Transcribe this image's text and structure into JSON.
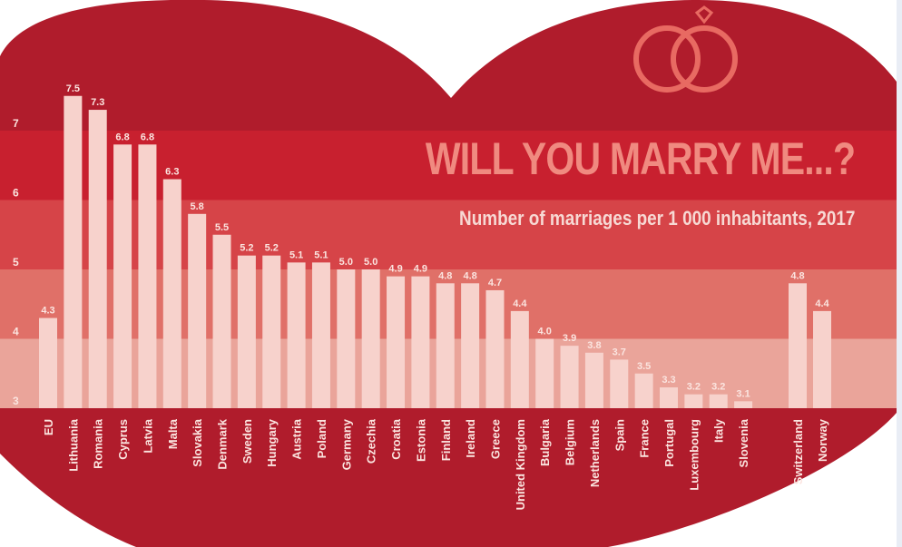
{
  "colors": {
    "heart": "#b01c2c",
    "band_top": "#c8202f",
    "band_mid": "#d64448",
    "band_low": "#e07068",
    "band_bottom": "#eaa49a",
    "bar": "#f7d2cc",
    "label": "#fbe4df",
    "title": "#f08a80",
    "rings": "#e86a62"
  },
  "chart_data": {
    "type": "bar",
    "title": "WILL YOU MARRY ME...?",
    "subtitle": "Number of marriages per 1 000 inhabitants, 2017",
    "categories": [
      "EU",
      "Lithuania",
      "Romania",
      "Cyprus",
      "Latvia",
      "Malta",
      "Slovakia",
      "Denmark",
      "Sweden",
      "Hungary",
      "Austria",
      "Poland",
      "Germany",
      "Czechia",
      "Croatia",
      "Estonia",
      "Finland",
      "Ireland",
      "Greece",
      "United Kingdom",
      "Bulgaria",
      "Belgium",
      "Netherlands",
      "Spain",
      "France",
      "Portugal",
      "Luxembourg",
      "Italy",
      "Slovenia",
      "Switzerland",
      "Norway"
    ],
    "values": [
      4.3,
      7.5,
      7.3,
      6.8,
      6.8,
      6.3,
      5.8,
      5.5,
      5.2,
      5.2,
      5.1,
      5.1,
      5.0,
      5.0,
      4.9,
      4.9,
      4.8,
      4.8,
      4.7,
      4.4,
      4.0,
      3.9,
      3.8,
      3.7,
      3.5,
      3.3,
      3.2,
      3.2,
      3.1,
      4.8,
      4.4
    ],
    "value_labels": [
      "4.3",
      "7.5",
      "7.3",
      "6.8",
      "6.8",
      "6.3",
      "5.8",
      "5.5",
      "5.2",
      "5.2",
      "5.1",
      "5.1",
      "5.0",
      "5.0",
      "4.9",
      "4.9",
      "4.8",
      "4.8",
      "4.7",
      "4.4",
      "4.0",
      "3.9",
      "3.8",
      "3.7",
      "3.5",
      "3.3",
      "3.2",
      "3.2",
      "3.1",
      "4.8",
      "4.4"
    ],
    "y_ticks": [
      "3",
      "4",
      "5",
      "6",
      "7"
    ],
    "ylim": [
      3,
      7.5
    ],
    "grid": false,
    "legend": "none"
  }
}
